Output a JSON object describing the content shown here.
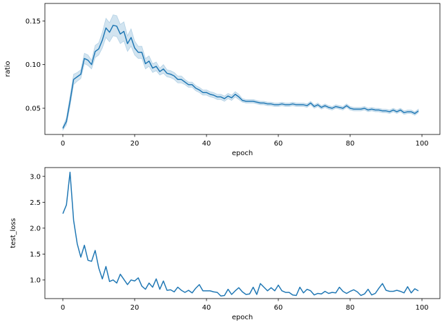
{
  "chart_data": [
    {
      "type": "line",
      "xlabel": "epoch",
      "ylabel": "ratio",
      "xlim": [
        -5,
        105
      ],
      "ylim": [
        0.02,
        0.17
      ],
      "xticks": [
        0,
        20,
        40,
        60,
        80,
        100
      ],
      "xtick_labels": [
        "0",
        "20",
        "40",
        "60",
        "80",
        "100"
      ],
      "yticks": [
        0.05,
        0.1,
        0.15
      ],
      "ytick_labels": [
        "0.05",
        "0.10",
        "0.15"
      ],
      "grid": false,
      "line_color": "#1f77b4",
      "band_color": "#1f77b4",
      "band_opacity": 0.2,
      "series": [
        {
          "x": [
            0,
            1,
            2,
            3,
            4,
            5,
            6,
            7,
            8,
            9,
            10,
            11,
            12,
            13,
            14,
            15,
            16,
            17,
            18,
            19,
            20,
            21,
            22,
            23,
            24,
            25,
            26,
            27,
            28,
            29,
            30,
            31,
            32,
            33,
            34,
            35,
            36,
            37,
            38,
            39,
            40,
            41,
            42,
            43,
            44,
            45,
            46,
            47,
            48,
            49,
            50,
            51,
            52,
            53,
            54,
            55,
            56,
            57,
            58,
            59,
            60,
            61,
            62,
            63,
            64,
            65,
            66,
            67,
            68,
            69,
            70,
            71,
            72,
            73,
            74,
            75,
            76,
            77,
            78,
            79,
            80,
            81,
            82,
            83,
            84,
            85,
            86,
            87,
            88,
            89,
            90,
            91,
            92,
            93,
            94,
            95,
            96,
            97,
            98,
            99
          ],
          "y": [
            0.027,
            0.035,
            0.058,
            0.083,
            0.086,
            0.089,
            0.107,
            0.105,
            0.1,
            0.115,
            0.118,
            0.128,
            0.142,
            0.137,
            0.145,
            0.144,
            0.135,
            0.138,
            0.124,
            0.131,
            0.119,
            0.114,
            0.114,
            0.101,
            0.104,
            0.096,
            0.098,
            0.092,
            0.095,
            0.09,
            0.089,
            0.087,
            0.083,
            0.083,
            0.08,
            0.077,
            0.077,
            0.073,
            0.071,
            0.068,
            0.068,
            0.066,
            0.065,
            0.063,
            0.063,
            0.061,
            0.064,
            0.062,
            0.066,
            0.063,
            0.059,
            0.058,
            0.058,
            0.058,
            0.057,
            0.056,
            0.056,
            0.055,
            0.055,
            0.054,
            0.054,
            0.055,
            0.054,
            0.054,
            0.055,
            0.054,
            0.054,
            0.054,
            0.053,
            0.056,
            0.052,
            0.054,
            0.051,
            0.053,
            0.051,
            0.05,
            0.052,
            0.051,
            0.05,
            0.053,
            0.05,
            0.049,
            0.049,
            0.049,
            0.05,
            0.048,
            0.049,
            0.048,
            0.048,
            0.047,
            0.047,
            0.046,
            0.048,
            0.046,
            0.048,
            0.045,
            0.046,
            0.046,
            0.044,
            0.047
          ],
          "lower": [
            0.025,
            0.031,
            0.052,
            0.077,
            0.081,
            0.084,
            0.101,
            0.099,
            0.095,
            0.108,
            0.111,
            0.119,
            0.131,
            0.126,
            0.133,
            0.132,
            0.124,
            0.127,
            0.115,
            0.121,
            0.111,
            0.107,
            0.107,
            0.095,
            0.098,
            0.091,
            0.093,
            0.088,
            0.09,
            0.086,
            0.085,
            0.083,
            0.079,
            0.079,
            0.077,
            0.074,
            0.074,
            0.07,
            0.068,
            0.065,
            0.065,
            0.063,
            0.062,
            0.06,
            0.06,
            0.058,
            0.061,
            0.059,
            0.063,
            0.06,
            0.057,
            0.056,
            0.056,
            0.056,
            0.055,
            0.054,
            0.054,
            0.053,
            0.053,
            0.052,
            0.052,
            0.053,
            0.052,
            0.052,
            0.053,
            0.052,
            0.052,
            0.052,
            0.051,
            0.054,
            0.05,
            0.052,
            0.049,
            0.051,
            0.049,
            0.048,
            0.05,
            0.049,
            0.048,
            0.051,
            0.048,
            0.047,
            0.047,
            0.047,
            0.048,
            0.046,
            0.047,
            0.046,
            0.046,
            0.045,
            0.045,
            0.044,
            0.046,
            0.044,
            0.046,
            0.043,
            0.044,
            0.044,
            0.042,
            0.045
          ],
          "upper": [
            0.029,
            0.039,
            0.064,
            0.089,
            0.091,
            0.094,
            0.113,
            0.111,
            0.105,
            0.122,
            0.125,
            0.137,
            0.153,
            0.148,
            0.157,
            0.156,
            0.146,
            0.149,
            0.133,
            0.141,
            0.127,
            0.121,
            0.121,
            0.107,
            0.11,
            0.101,
            0.103,
            0.096,
            0.1,
            0.094,
            0.093,
            0.091,
            0.087,
            0.087,
            0.083,
            0.08,
            0.08,
            0.076,
            0.074,
            0.071,
            0.071,
            0.069,
            0.068,
            0.066,
            0.066,
            0.064,
            0.067,
            0.065,
            0.069,
            0.066,
            0.061,
            0.06,
            0.06,
            0.06,
            0.059,
            0.058,
            0.058,
            0.057,
            0.057,
            0.056,
            0.056,
            0.057,
            0.056,
            0.056,
            0.057,
            0.056,
            0.056,
            0.056,
            0.055,
            0.058,
            0.054,
            0.056,
            0.053,
            0.055,
            0.053,
            0.052,
            0.054,
            0.053,
            0.052,
            0.055,
            0.052,
            0.051,
            0.051,
            0.051,
            0.052,
            0.05,
            0.051,
            0.05,
            0.05,
            0.049,
            0.049,
            0.048,
            0.05,
            0.048,
            0.05,
            0.047,
            0.048,
            0.048,
            0.046,
            0.049
          ]
        }
      ]
    },
    {
      "type": "line",
      "xlabel": "epoch",
      "ylabel": "test_loss",
      "xlim": [
        -5,
        105
      ],
      "ylim": [
        0.64,
        3.17
      ],
      "xticks": [
        0,
        20,
        40,
        60,
        80,
        100
      ],
      "xtick_labels": [
        "0",
        "20",
        "40",
        "60",
        "80",
        "100"
      ],
      "yticks": [
        1.0,
        1.5,
        2.0,
        2.5,
        3.0
      ],
      "ytick_labels": [
        "1.0",
        "1.5",
        "2.0",
        "2.5",
        "3.0"
      ],
      "grid": false,
      "line_color": "#1f77b4",
      "series": [
        {
          "x": [
            0,
            1,
            2,
            3,
            4,
            5,
            6,
            7,
            8,
            9,
            10,
            11,
            12,
            13,
            14,
            15,
            16,
            17,
            18,
            19,
            20,
            21,
            22,
            23,
            24,
            25,
            26,
            27,
            28,
            29,
            30,
            31,
            32,
            33,
            34,
            35,
            36,
            37,
            38,
            39,
            40,
            41,
            42,
            43,
            44,
            45,
            46,
            47,
            48,
            49,
            50,
            51,
            52,
            53,
            54,
            55,
            56,
            57,
            58,
            59,
            60,
            61,
            62,
            63,
            64,
            65,
            66,
            67,
            68,
            69,
            70,
            71,
            72,
            73,
            74,
            75,
            76,
            77,
            78,
            79,
            80,
            81,
            82,
            83,
            84,
            85,
            86,
            87,
            88,
            89,
            90,
            91,
            92,
            93,
            94,
            95,
            96,
            97,
            98,
            99
          ],
          "y": [
            2.28,
            2.45,
            3.08,
            2.15,
            1.7,
            1.44,
            1.67,
            1.38,
            1.36,
            1.57,
            1.23,
            1.02,
            1.26,
            0.97,
            1.0,
            0.94,
            1.11,
            1.01,
            0.91,
            1.0,
            0.98,
            1.04,
            0.88,
            0.82,
            0.94,
            0.86,
            1.02,
            0.82,
            0.98,
            0.8,
            0.81,
            0.77,
            0.86,
            0.8,
            0.76,
            0.8,
            0.75,
            0.84,
            0.91,
            0.79,
            0.79,
            0.79,
            0.77,
            0.76,
            0.69,
            0.7,
            0.82,
            0.72,
            0.79,
            0.85,
            0.77,
            0.72,
            0.73,
            0.86,
            0.72,
            0.93,
            0.86,
            0.79,
            0.85,
            0.79,
            0.9,
            0.79,
            0.76,
            0.76,
            0.71,
            0.7,
            0.86,
            0.75,
            0.82,
            0.79,
            0.71,
            0.74,
            0.73,
            0.78,
            0.74,
            0.76,
            0.75,
            0.86,
            0.78,
            0.74,
            0.78,
            0.81,
            0.77,
            0.7,
            0.73,
            0.82,
            0.71,
            0.74,
            0.84,
            0.93,
            0.8,
            0.78,
            0.78,
            0.8,
            0.78,
            0.75,
            0.87,
            0.75,
            0.83,
            0.79
          ]
        }
      ]
    }
  ]
}
